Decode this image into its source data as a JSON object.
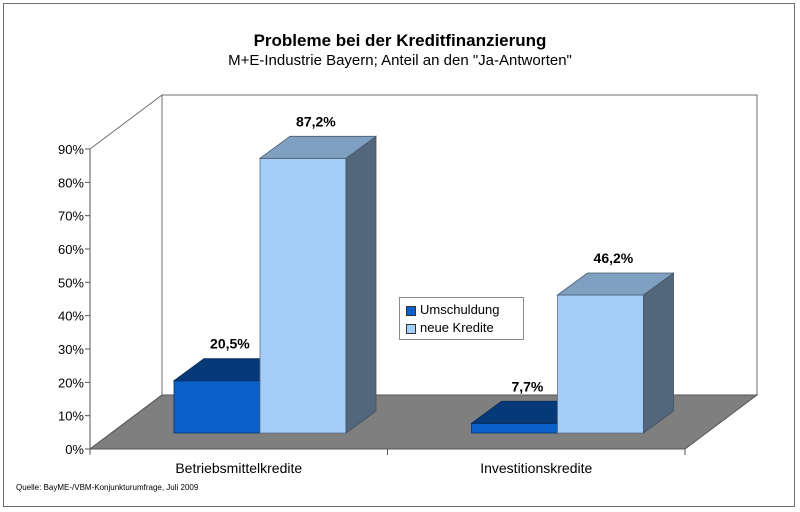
{
  "chart_data": {
    "type": "bar",
    "title": "Probleme bei der Kreditfinanzierung",
    "subtitle": "M+E-Industrie Bayern; Anteil an den \"Ja-Antworten\"",
    "categories": [
      "Betriebsmittelkredite",
      "Investitionskredite"
    ],
    "series": [
      {
        "name": "Umschuldung",
        "values": [
          20.5,
          7.7
        ],
        "labels": [
          "20,5%",
          "7,7%"
        ],
        "color": "#0a5fc8"
      },
      {
        "name": "neue Kredite",
        "values": [
          87.2,
          46.2
        ],
        "labels": [
          "87,2%",
          "46,2%"
        ],
        "color": "#a4cdf7"
      }
    ],
    "ylim": [
      0,
      90
    ],
    "yticks": [
      "0%",
      "10%",
      "20%",
      "30%",
      "40%",
      "50%",
      "60%",
      "70%",
      "80%",
      "90%"
    ],
    "grid": false,
    "legend_position": "center",
    "style": "3d-column"
  },
  "source": "Quelle: BayME-/VBM-Konjunkturumfrage, Juli 2009"
}
